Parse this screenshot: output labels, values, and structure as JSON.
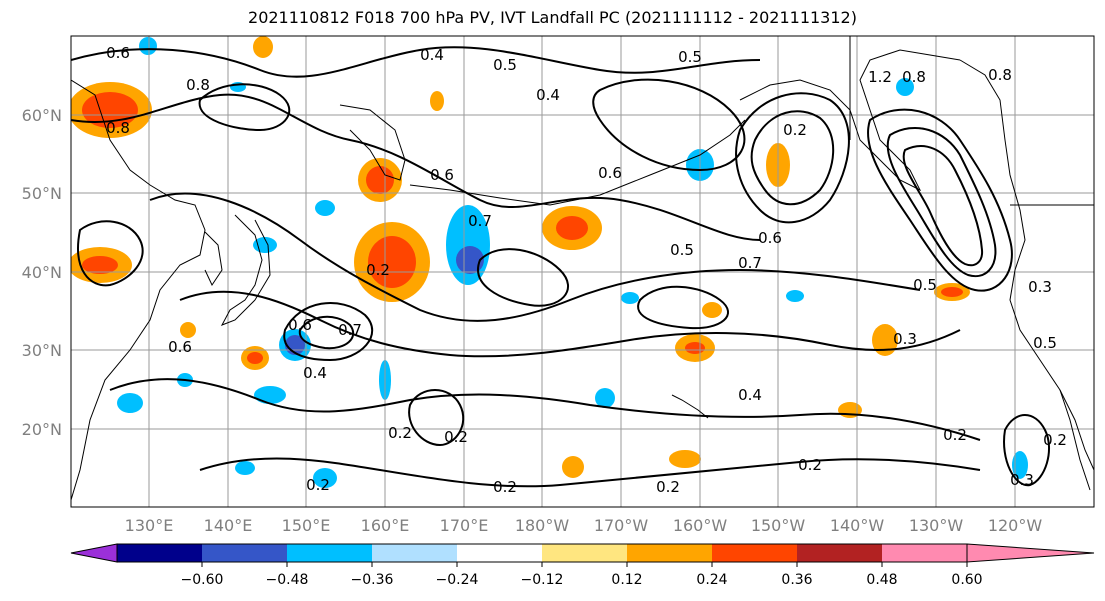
{
  "title": "2021110812 F018 700 hPa PV, IVT Landfall PC (2021111112 - 2021111312)",
  "map": {
    "lon_ticks": [
      "130°E",
      "140°E",
      "150°E",
      "160°E",
      "170°E",
      "180°W",
      "170°W",
      "160°W",
      "150°W",
      "140°W",
      "130°W",
      "120°W"
    ],
    "lat_ticks": [
      "20°N",
      "30°N",
      "40°N",
      "50°N",
      "60°N"
    ],
    "lon_range": [
      120,
      250
    ],
    "lat_range": [
      10,
      70
    ],
    "contour_labels": [
      "0.6",
      "0.4",
      "0.5",
      "0.4",
      "0.5",
      "0.8",
      "0.8",
      "0.8",
      "1.2",
      "0.8",
      "0.2",
      "0.6",
      "0.7",
      "0.6",
      "0.7",
      "0.5",
      "0.6",
      "0.7",
      "0.2",
      "0.5",
      "0.6",
      "0.6",
      "0.4",
      "0.3",
      "0.2",
      "0.2",
      "0.2",
      "0.2",
      "0.2",
      "0.2",
      "0.4",
      "0.3",
      "0.3",
      "0.5",
      "0.2",
      "0.2"
    ],
    "grid": true
  },
  "colorbar": {
    "colors": [
      "#9b30d9",
      "#00008b",
      "#3556c8",
      "#00bfff",
      "#b0e0ff",
      "#ffffff",
      "#ffe680",
      "#ffa500",
      "#ff4500",
      "#b22222",
      "#ff8ab0"
    ],
    "tick_labels": [
      "−0.60",
      "−0.48",
      "−0.36",
      "−0.24",
      "−0.12",
      "0.12",
      "0.24",
      "0.36",
      "0.48",
      "0.60"
    ],
    "extend": "both"
  }
}
